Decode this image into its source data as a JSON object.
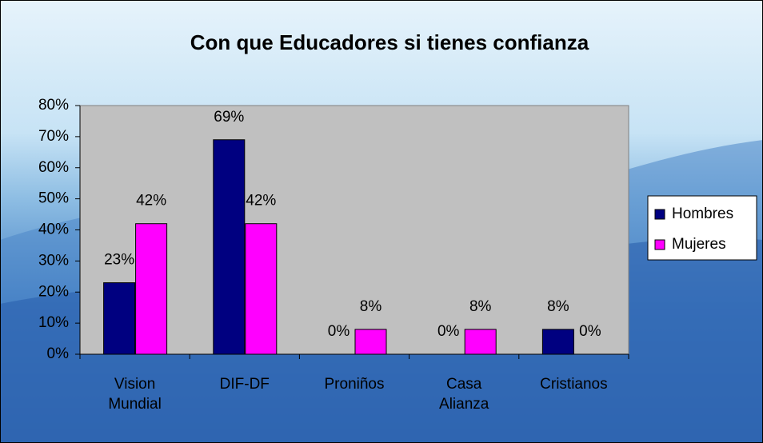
{
  "chart_data": {
    "type": "bar",
    "title": "Con que Educadores si tienes confianza",
    "categories": [
      "Vision Mundial",
      "DIF-DF",
      "Proniños",
      "Casa Alianza",
      "Cristianos"
    ],
    "series": [
      {
        "name": "Hombres",
        "color": "#000080",
        "values": [
          23,
          69,
          0,
          0,
          8
        ],
        "value_labels": [
          "23%",
          "69%",
          "0%",
          "0%",
          "8%"
        ]
      },
      {
        "name": "Mujeres",
        "color": "#ff00ff",
        "values": [
          42,
          42,
          8,
          8,
          0
        ],
        "value_labels": [
          "42%",
          "42%",
          "8%",
          "8%",
          "0%"
        ]
      }
    ],
    "ylim": [
      0,
      80
    ],
    "yticks": [
      {
        "value": 0,
        "label": "0%"
      },
      {
        "value": 10,
        "label": "10%"
      },
      {
        "value": 20,
        "label": "20%"
      },
      {
        "value": 30,
        "label": "30%"
      },
      {
        "value": 40,
        "label": "40%"
      },
      {
        "value": 50,
        "label": "50%"
      },
      {
        "value": 60,
        "label": "60%"
      },
      {
        "value": 70,
        "label": "70%"
      },
      {
        "value": 80,
        "label": "80%"
      }
    ],
    "legend": "right",
    "plot_background": "#c0c0c0"
  }
}
